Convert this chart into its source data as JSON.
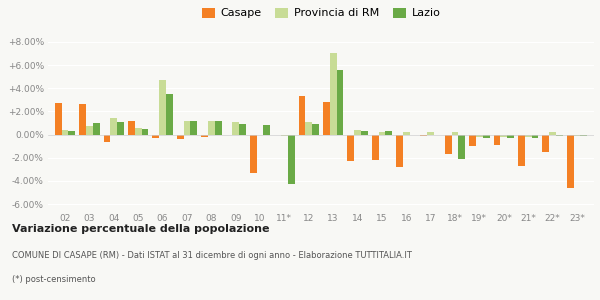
{
  "years": [
    "02",
    "03",
    "04",
    "05",
    "06",
    "07",
    "08",
    "09",
    "10",
    "11*",
    "12",
    "13",
    "14",
    "15",
    "16",
    "17",
    "18*",
    "19*",
    "20*",
    "21*",
    "22*",
    "23*"
  ],
  "casape": [
    2.7,
    2.6,
    -0.6,
    1.2,
    -0.3,
    -0.4,
    -0.2,
    0.0,
    -3.3,
    0.0,
    3.3,
    2.8,
    -2.3,
    -2.2,
    -2.8,
    -0.1,
    -1.7,
    -1.0,
    -0.9,
    -2.7,
    -1.5,
    -4.6
  ],
  "provincia": [
    0.4,
    0.7,
    1.4,
    0.6,
    4.7,
    1.2,
    1.2,
    1.1,
    0.0,
    -0.1,
    1.1,
    7.0,
    0.4,
    0.2,
    0.2,
    0.2,
    0.2,
    -0.2,
    -0.2,
    -0.2,
    0.2,
    -0.1
  ],
  "lazio": [
    0.3,
    1.0,
    1.1,
    0.5,
    3.5,
    1.2,
    1.2,
    0.9,
    0.8,
    -4.3,
    0.9,
    5.6,
    0.3,
    0.3,
    0.0,
    0.0,
    -2.1,
    -0.3,
    -0.3,
    -0.3,
    -0.1,
    -0.1
  ],
  "color_casape": "#f48024",
  "color_provincia": "#c8dc96",
  "color_lazio": "#6aaa46",
  "bg_color": "#f8f8f5",
  "title_bold": "Variazione percentuale della popolazione",
  "subtitle1": "COMUNE DI CASAPE (RM) - Dati ISTAT al 31 dicembre di ogni anno - Elaborazione TUTTITALIA.IT",
  "subtitle2": "(*) post-censimento",
  "ylim": [
    -6.5,
    8.5
  ],
  "yticks": [
    -6.0,
    -4.0,
    -2.0,
    0.0,
    2.0,
    4.0,
    6.0,
    8.0
  ]
}
